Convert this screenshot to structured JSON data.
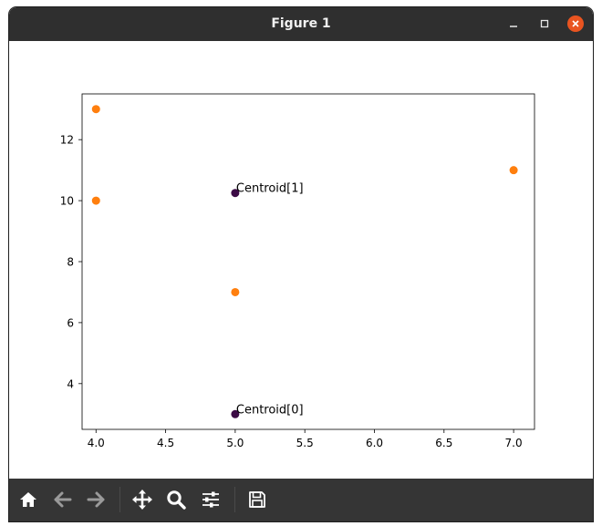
{
  "window": {
    "title": "Figure 1",
    "controls": {
      "minimize": "minimize-icon",
      "maximize": "maximize-icon",
      "close": "close-icon",
      "close_color": "#e95420"
    }
  },
  "toolbar": {
    "tools": [
      {
        "name": "home",
        "icon": "home-icon",
        "enabled": true
      },
      {
        "name": "back",
        "icon": "arrow-left-icon",
        "enabled": false
      },
      {
        "name": "forward",
        "icon": "arrow-right-icon",
        "enabled": false
      },
      {
        "name": "pan",
        "icon": "move-icon",
        "enabled": true
      },
      {
        "name": "zoom",
        "icon": "magnifier-icon",
        "enabled": true
      },
      {
        "name": "configure",
        "icon": "sliders-icon",
        "enabled": true
      },
      {
        "name": "save",
        "icon": "floppy-icon",
        "enabled": true
      }
    ]
  },
  "chart_data": {
    "type": "scatter",
    "title": "",
    "xlabel": "",
    "ylabel": "",
    "xlim": [
      3.9,
      7.15
    ],
    "ylim": [
      2.5,
      13.5
    ],
    "xticks": [
      4.0,
      4.5,
      5.0,
      5.5,
      6.0,
      6.5,
      7.0
    ],
    "yticks": [
      4,
      6,
      8,
      10,
      12
    ],
    "grid": false,
    "series": [
      {
        "color": "#ff7f0e",
        "points": [
          {
            "x": 4.0,
            "y": 13.0
          },
          {
            "x": 4.0,
            "y": 10.0
          },
          {
            "x": 7.0,
            "y": 11.0
          },
          {
            "x": 5.0,
            "y": 7.0
          }
        ]
      },
      {
        "color": "#3b0a45",
        "points": [
          {
            "x": 5.0,
            "y": 10.25,
            "label": "Centroid[1]"
          },
          {
            "x": 5.0,
            "y": 3.0,
            "label": "Centroid[0]"
          }
        ]
      }
    ]
  }
}
